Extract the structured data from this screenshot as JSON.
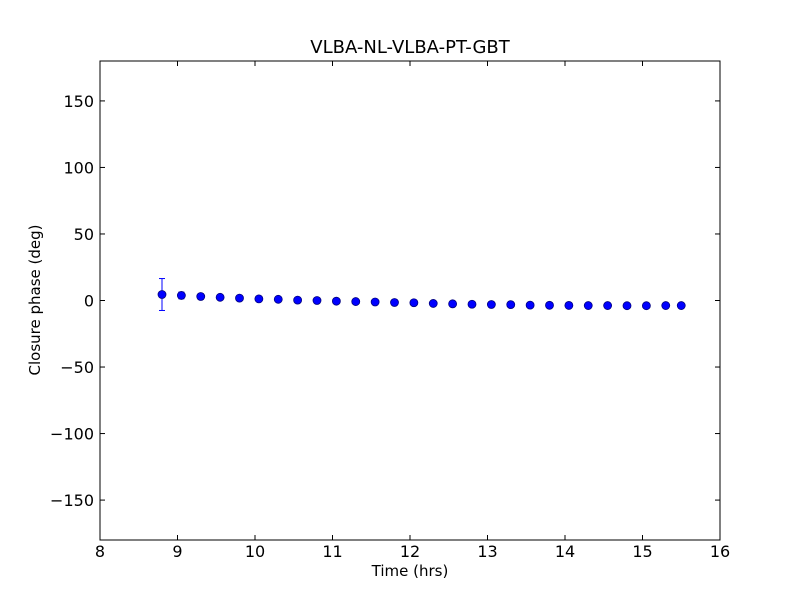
{
  "chart_data": {
    "type": "scatter",
    "title": "VLBA-NL-VLBA-PT-GBT",
    "xlabel": "Time (hrs)",
    "ylabel": "Closure phase (deg)",
    "xlim": [
      8,
      16
    ],
    "ylim": [
      -180,
      180
    ],
    "xticks": [
      8,
      9,
      10,
      11,
      12,
      13,
      14,
      15,
      16
    ],
    "yticks": [
      150,
      100,
      50,
      0,
      -50,
      -100,
      -150
    ],
    "ytick_labels": [
      "150",
      "100",
      "50",
      "0",
      "−50",
      "−100",
      "−150"
    ],
    "grid": false,
    "legend": "none",
    "marker_color": "#0000ff",
    "errorbar_color": "#0000ff",
    "series": [
      {
        "x": [
          8.8,
          9.05,
          9.3,
          9.55,
          9.8,
          10.05,
          10.3,
          10.55,
          10.8,
          11.05,
          11.3,
          11.55,
          11.8,
          12.05,
          12.3,
          12.55,
          12.8,
          13.05,
          13.3,
          13.55,
          13.8,
          14.05,
          14.3,
          14.55,
          14.8,
          15.05,
          15.3,
          15.5
        ],
        "y": [
          4.5,
          3.8,
          3.0,
          2.4,
          1.8,
          1.2,
          0.9,
          0.3,
          0.0,
          -0.5,
          -0.8,
          -1.1,
          -1.5,
          -1.7,
          -2.2,
          -2.5,
          -2.8,
          -3.0,
          -3.1,
          -3.5,
          -3.6,
          -3.7,
          -3.8,
          -3.8,
          -3.9,
          -3.9,
          -3.8,
          -3.8
        ],
        "yerr": [
          12.0,
          2.5,
          2.0,
          1.8,
          1.6,
          1.5,
          1.5,
          1.4,
          1.4,
          1.3,
          1.3,
          1.3,
          1.3,
          1.3,
          1.3,
          1.3,
          1.3,
          1.3,
          1.3,
          1.3,
          1.3,
          1.3,
          1.3,
          1.3,
          1.3,
          1.3,
          1.3,
          1.3
        ]
      }
    ]
  }
}
